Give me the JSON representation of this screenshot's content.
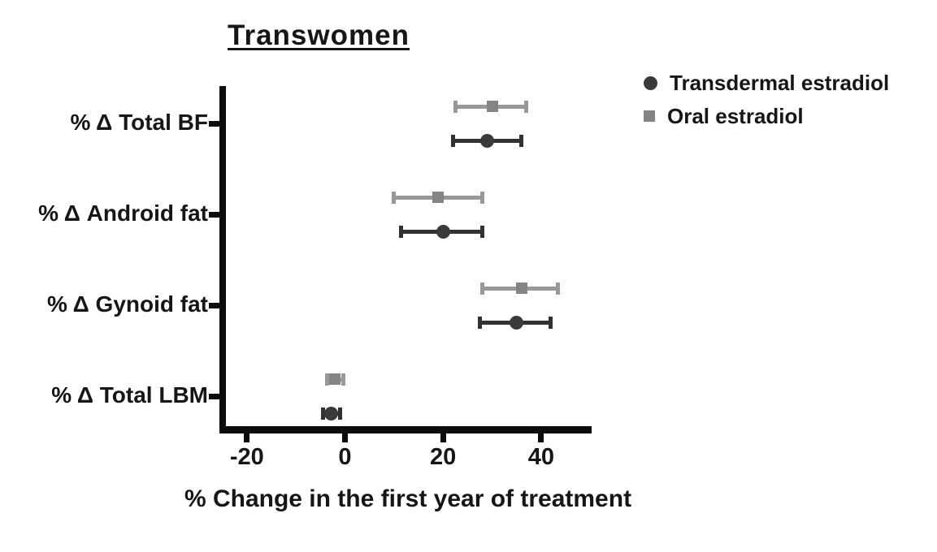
{
  "figure": {
    "background": "#ffffff",
    "text_color": "#161616",
    "axis_color": "#0c0c0c"
  },
  "chart_data": {
    "type": "scatter",
    "subtype": "horizontal-dot-plot-with-error-bars",
    "title": "Transwomen",
    "xlabel": "% Change in the first year of treatment",
    "ylabel": "",
    "xlim": [
      -25.6,
      50.3
    ],
    "xticks": [
      -20,
      0,
      20,
      40
    ],
    "xtick_labels": [
      "-20",
      "0",
      "20",
      "40"
    ],
    "categories": [
      "% Δ Total BF",
      "% Δ Android fat",
      "% Δ Gynoid fat",
      "% Δ Total LBM"
    ],
    "grid": false,
    "legend_position": "outside-upper-right",
    "series": [
      {
        "name": "Oral estradiol",
        "marker": "square",
        "color": "#848484",
        "line_color": "#989898",
        "row_offset": "above",
        "values": [
          30,
          19,
          36,
          -2
        ],
        "ci_low": [
          22.5,
          10,
          28,
          -3.6
        ],
        "ci_high": [
          37,
          28,
          43.5,
          -0.3
        ]
      },
      {
        "name": "Transdermal estradiol",
        "marker": "circle",
        "color": "#3a3a3a",
        "line_color": "#323232",
        "row_offset": "below",
        "values": [
          29,
          20,
          35,
          -2.8
        ],
        "ci_low": [
          22,
          11.5,
          27.5,
          -4.5
        ],
        "ci_high": [
          36,
          28,
          42,
          -1
        ]
      }
    ],
    "legend_order": [
      "Transdermal estradiol",
      "Oral estradiol"
    ]
  }
}
